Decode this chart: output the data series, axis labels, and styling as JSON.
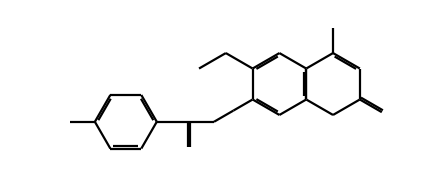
{
  "bg_color": "#ffffff",
  "line_color": "#000000",
  "lw": 1.6,
  "figsize": [
    4.28,
    1.72
  ],
  "dpi": 100,
  "xlim": [
    0,
    10.7
  ],
  "ylim": [
    0,
    4.3
  ],
  "bl": 0.78
}
